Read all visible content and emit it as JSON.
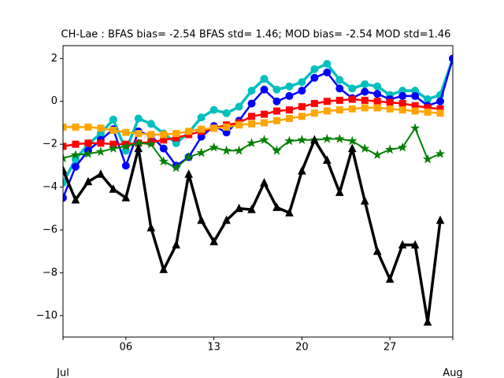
{
  "chart_data": {
    "type": "line",
    "title": "CH-Lae   : BFAS bias= -2.54 BFAS std= 1.46; MOD bias= -2.54 MOD std=1.46",
    "x": [
      1,
      2,
      3,
      4,
      5,
      6,
      7,
      8,
      9,
      10,
      11,
      12,
      13,
      14,
      15,
      16,
      17,
      18,
      19,
      20,
      21,
      22,
      23,
      24,
      25,
      26,
      27,
      28,
      29,
      30,
      31,
      32
    ],
    "xlim": [
      1,
      32
    ],
    "xticks": [
      {
        "value": 6,
        "label": "06"
      },
      {
        "value": 13,
        "label": "13"
      },
      {
        "value": 20,
        "label": "20"
      },
      {
        "value": 27,
        "label": "27"
      }
    ],
    "month_ticks": [
      {
        "value": 1,
        "label": "Jul"
      },
      {
        "value": 32,
        "label": "Aug"
      }
    ],
    "ylim": [
      -11,
      2.6
    ],
    "yticks": [
      {
        "value": 2,
        "label": "2"
      },
      {
        "value": 0,
        "label": "0"
      },
      {
        "value": -2,
        "label": "−2"
      },
      {
        "value": -4,
        "label": "−4"
      },
      {
        "value": -6,
        "label": "−6"
      },
      {
        "value": -8,
        "label": "−8"
      },
      {
        "value": -10,
        "label": "−10"
      }
    ],
    "grid": false,
    "series": [
      {
        "color": "#00bfbf",
        "marker": "circle",
        "width": 3.5,
        "values": [
          -3.8,
          -2.7,
          -2.0,
          -1.5,
          -0.85,
          -2.3,
          -0.8,
          -1.05,
          -1.5,
          -1.95,
          -1.45,
          -0.75,
          -0.4,
          -0.55,
          -0.25,
          0.5,
          1.05,
          0.55,
          0.7,
          0.9,
          1.5,
          1.75,
          1.0,
          0.6,
          0.8,
          0.7,
          0.3,
          0.5,
          0.5,
          0.1,
          0.3,
          2.0
        ]
      },
      {
        "color": "#0000ff",
        "marker": "circle",
        "width": 2.5,
        "values": [
          -4.5,
          -3.05,
          -2.3,
          -1.8,
          -1.3,
          -3.0,
          -1.4,
          -1.6,
          -2.2,
          -3.0,
          -2.6,
          -1.65,
          -1.15,
          -1.45,
          -0.9,
          -0.1,
          0.55,
          0.0,
          0.25,
          0.5,
          1.1,
          1.35,
          0.6,
          0.15,
          0.45,
          0.35,
          0.1,
          0.25,
          0.25,
          -0.2,
          0.0,
          2.0
        ]
      },
      {
        "color": "#ff0000",
        "marker": "square",
        "width": 2.5,
        "values": [
          -2.1,
          -2.0,
          -1.95,
          -1.95,
          -2.0,
          -2.0,
          -1.95,
          -1.9,
          -1.8,
          -1.7,
          -1.55,
          -1.4,
          -1.25,
          -1.1,
          -1.0,
          -0.7,
          -0.6,
          -0.45,
          -0.4,
          -0.25,
          -0.1,
          0.0,
          0.05,
          0.1,
          0.05,
          0.0,
          -0.05,
          -0.1,
          -0.2,
          -0.3,
          -0.35,
          null
        ]
      },
      {
        "color": "#ffa500",
        "marker": "square",
        "width": 2.5,
        "values": [
          -1.2,
          -1.2,
          -1.2,
          -1.25,
          -1.35,
          -1.45,
          -1.5,
          -1.55,
          -1.55,
          -1.5,
          -1.4,
          -1.3,
          -1.25,
          -1.2,
          -1.1,
          -1.05,
          -1.0,
          -0.9,
          -0.8,
          -0.7,
          -0.55,
          -0.45,
          -0.4,
          -0.35,
          -0.3,
          -0.3,
          -0.35,
          -0.4,
          -0.45,
          -0.5,
          -0.55,
          null
        ]
      },
      {
        "color": "#008000",
        "marker": "star",
        "width": 2,
        "values": [
          -2.65,
          -2.5,
          -2.45,
          -2.35,
          -2.2,
          -2.1,
          -1.95,
          -2.0,
          -2.8,
          -3.1,
          -2.6,
          -2.4,
          -2.15,
          -2.3,
          -2.3,
          -1.95,
          -1.8,
          -2.3,
          -1.85,
          -1.8,
          -1.8,
          -1.75,
          -1.75,
          -1.85,
          -2.2,
          -2.5,
          -2.25,
          -2.15,
          -1.25,
          -2.7,
          -2.45,
          null
        ]
      },
      {
        "color": "#000000",
        "marker": "triangle",
        "width": 3.5,
        "values": [
          -3.2,
          -4.6,
          -3.75,
          -3.4,
          -4.1,
          -4.5,
          -2.2,
          -5.9,
          -7.85,
          -6.7,
          -3.4,
          -5.55,
          -6.55,
          -5.55,
          -5.0,
          -5.05,
          -3.8,
          -4.95,
          -5.2,
          -3.25,
          -1.8,
          -2.75,
          -4.25,
          -2.2,
          -4.65,
          -7.0,
          -8.3,
          -6.7,
          -6.7,
          -10.3,
          -5.55,
          null
        ]
      }
    ]
  }
}
